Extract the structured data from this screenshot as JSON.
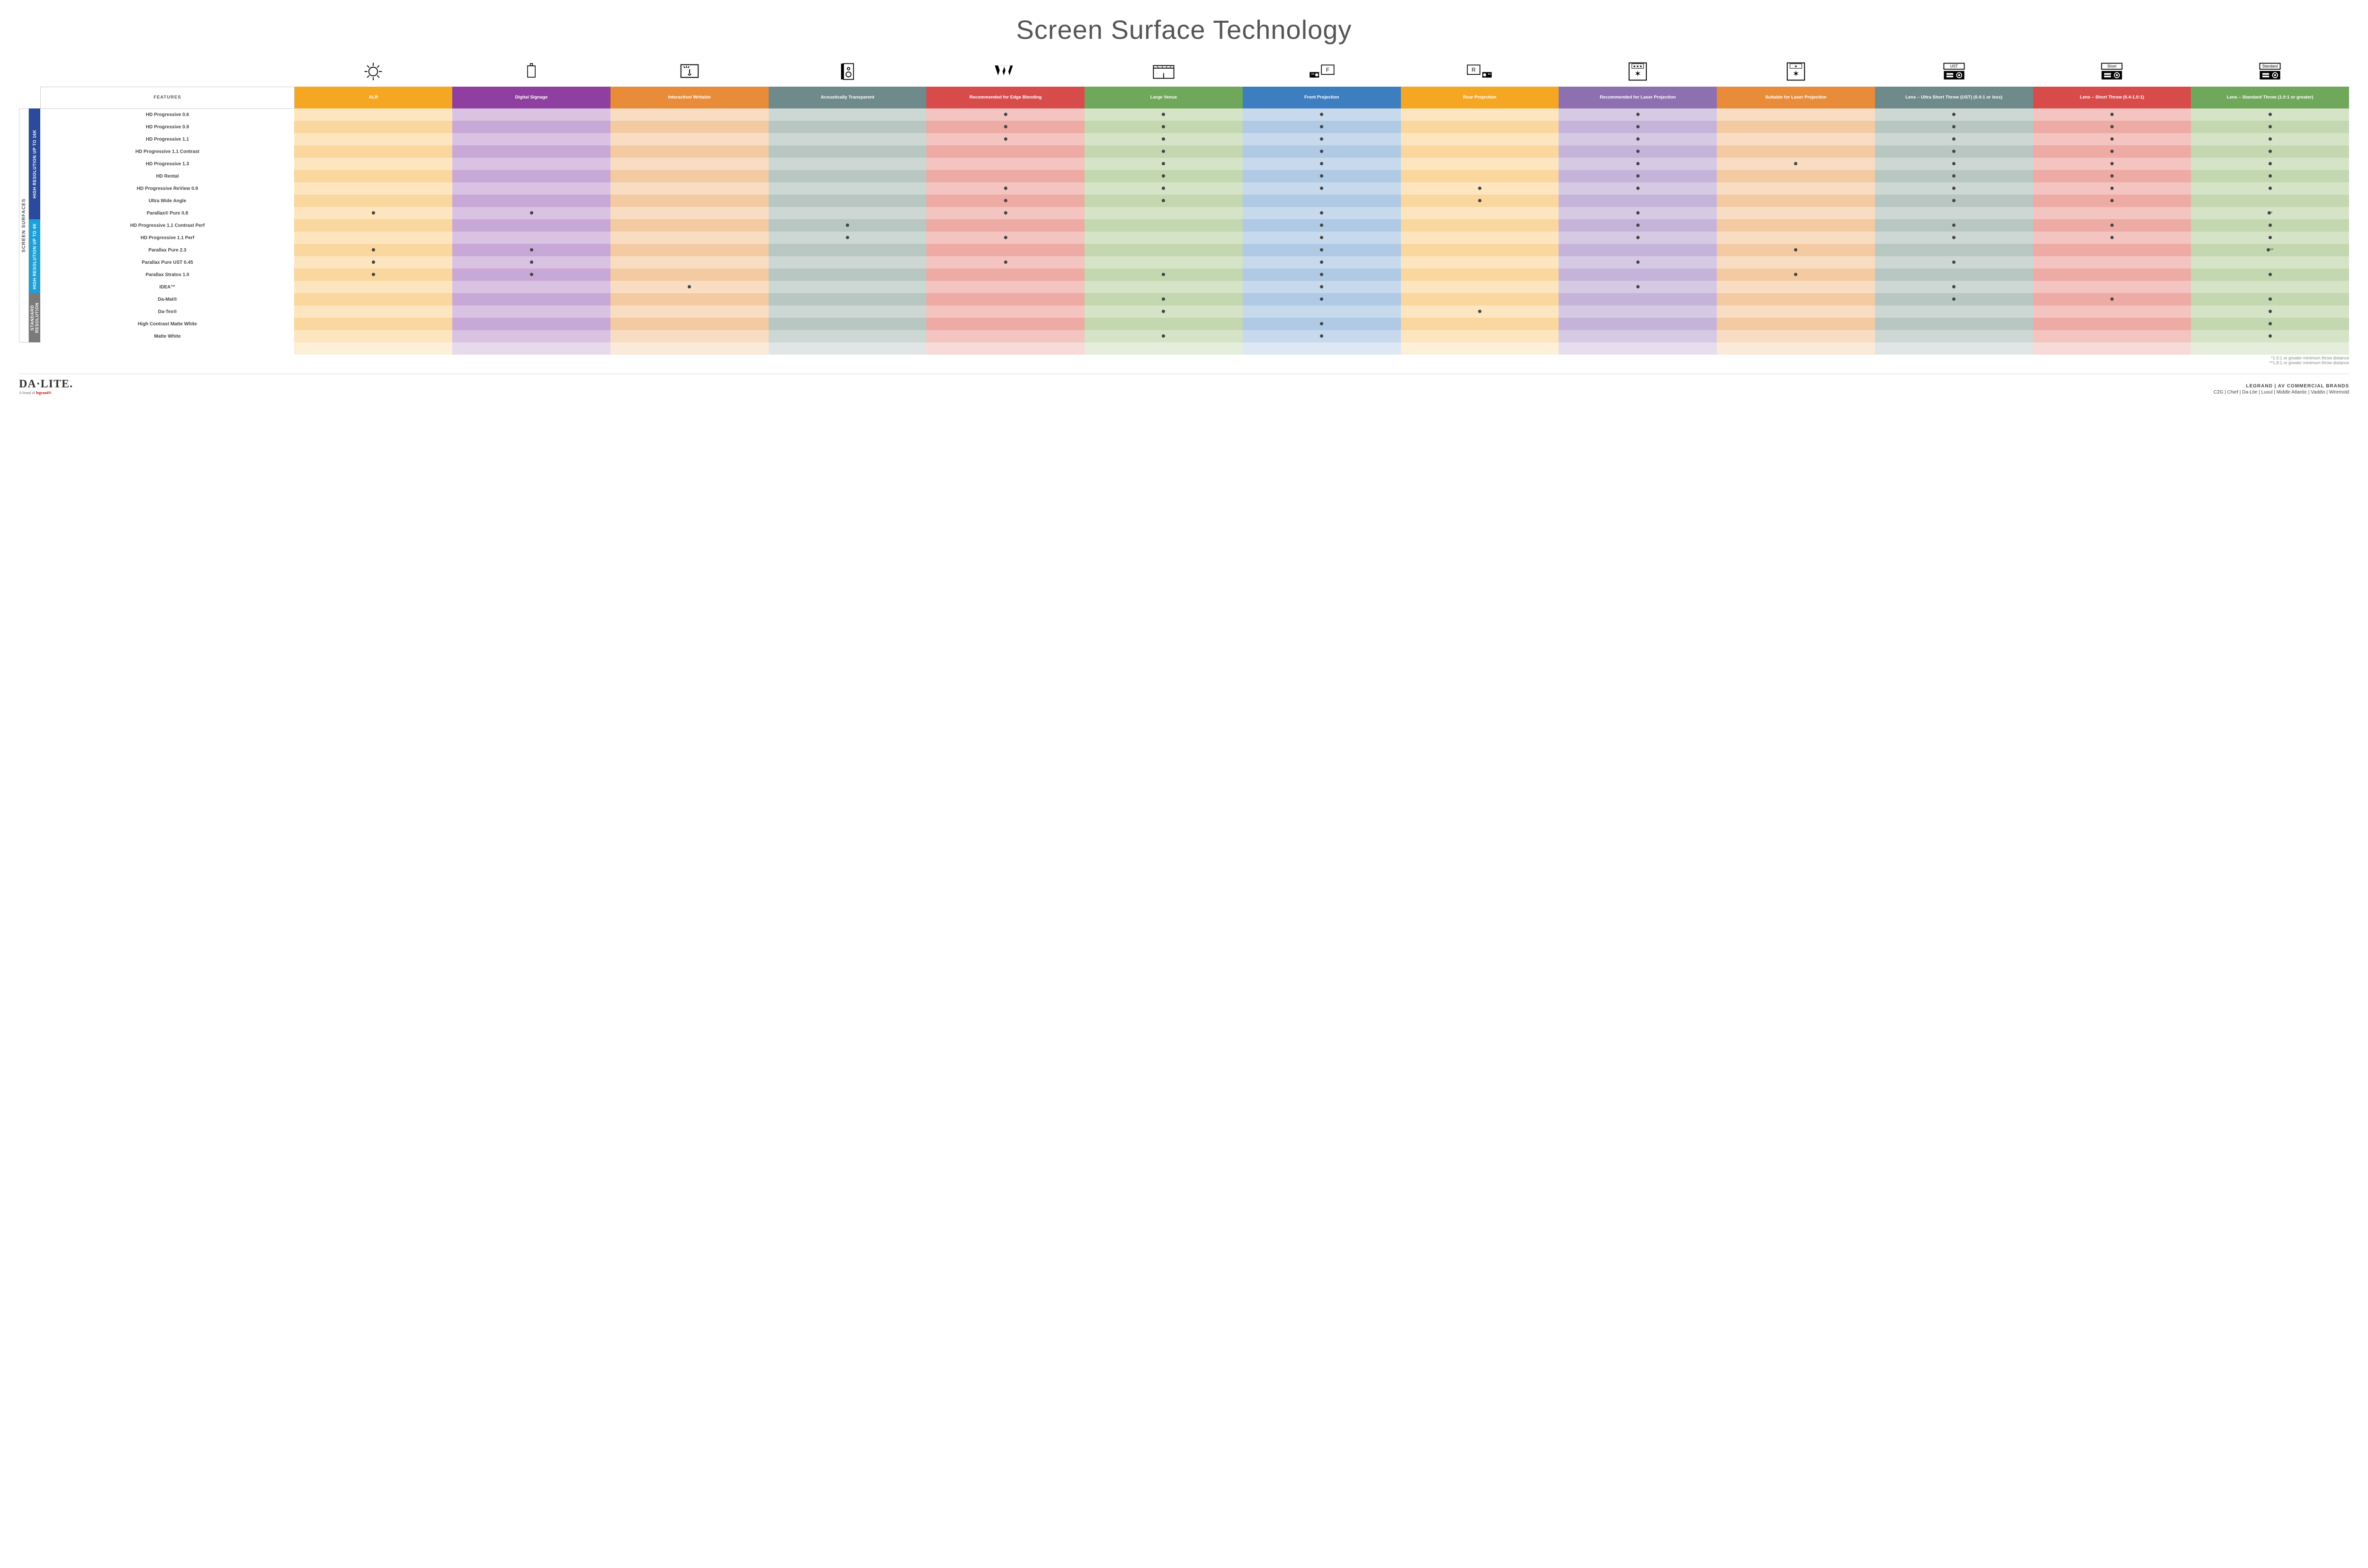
{
  "title": "Screen Surface Technology",
  "sideLabels": {
    "outer": "SCREEN SURFACES"
  },
  "groups": [
    {
      "label": "HIGH RESOLUTION UP TO 16K",
      "color": "#2b4a9b",
      "rowspan": 9
    },
    {
      "label": "HIGH RESOLUTION UP TO 4K",
      "color": "#1f9fd8",
      "rowspan": 6
    },
    {
      "label": "STANDARD RESOLUTION",
      "color": "#7a7a7a",
      "rowspan": 4
    }
  ],
  "columns": [
    {
      "key": "features",
      "label": "FEATURES",
      "headerBg": "#ffffff"
    },
    {
      "key": "alr",
      "label": "ALR",
      "headerBg": "#f5a623",
      "base": "#fde5bf",
      "alt": "#f9d79e"
    },
    {
      "key": "signage",
      "label": "Digital Signage",
      "headerBg": "#8e3fa0",
      "base": "#d9c2e2",
      "alt": "#c8a8d6"
    },
    {
      "key": "interactive",
      "label": "Interactive/ Writable",
      "headerBg": "#e98c3a",
      "base": "#f9ddc3",
      "alt": "#f4caa3"
    },
    {
      "key": "acoustic",
      "label": "Acoustically Transparent",
      "headerBg": "#6f8a8a",
      "base": "#cdd7d4",
      "alt": "#b9c7c3"
    },
    {
      "key": "edge",
      "label": "Recommended for Edge Blending",
      "headerBg": "#d84b4b",
      "base": "#f3c4c0",
      "alt": "#eeaaa4"
    },
    {
      "key": "large",
      "label": "Large Venue",
      "headerBg": "#6fa85a",
      "base": "#d5e3c6",
      "alt": "#c3d7b0"
    },
    {
      "key": "front",
      "label": "Front Projection",
      "headerBg": "#3d7ec1",
      "base": "#c7d9ed",
      "alt": "#b0c9e4"
    },
    {
      "key": "rear",
      "label": "Rear Projection",
      "headerBg": "#f5a623",
      "base": "#fde5bf",
      "alt": "#f9d79e"
    },
    {
      "key": "laserRec",
      "label": "Recommended for Laser Projection",
      "headerBg": "#8e6fb0",
      "base": "#d6c9e4",
      "alt": "#c6b3da"
    },
    {
      "key": "laserSuit",
      "label": "Suitable for Laser Projection",
      "headerBg": "#e98c3a",
      "base": "#f9ddc3",
      "alt": "#f4caa3"
    },
    {
      "key": "ust",
      "label": "Lens – Ultra Short Throw (UST) (0.4:1 or less)",
      "headerBg": "#6f8a8a",
      "base": "#cdd7d4",
      "alt": "#b9c7c3"
    },
    {
      "key": "short",
      "label": "Lens – Short Throw (0.4-1.0:1)",
      "headerBg": "#d84b4b",
      "base": "#f3c4c0",
      "alt": "#eeaaa4"
    },
    {
      "key": "std",
      "label": "Lens – Standard Throw (1.0:1 or greater)",
      "headerBg": "#6fa85a",
      "base": "#d5e3c6",
      "alt": "#c3d7b0"
    }
  ],
  "rows": [
    {
      "label": "HD Progressive 0.6",
      "dots": {
        "edge": "•",
        "large": "•",
        "front": "•",
        "laserRec": "•",
        "ust": "•",
        "short": "•",
        "std": "•"
      }
    },
    {
      "label": "HD Progressive 0.9",
      "dots": {
        "edge": "•",
        "large": "•",
        "front": "•",
        "laserRec": "•",
        "ust": "•",
        "short": "•",
        "std": "•"
      }
    },
    {
      "label": "HD Progressive 1.1",
      "dots": {
        "edge": "•",
        "large": "•",
        "front": "•",
        "laserRec": "•",
        "ust": "•",
        "short": "•",
        "std": "•"
      }
    },
    {
      "label": "HD Progressive 1.1 Contrast",
      "dots": {
        "large": "•",
        "front": "•",
        "laserRec": "•",
        "ust": "•",
        "short": "•",
        "std": "•"
      }
    },
    {
      "label": "HD Progressive 1.3",
      "dots": {
        "large": "•",
        "front": "•",
        "laserRec": "•",
        "laserSuit": "•",
        "ust": "•",
        "short": "•",
        "std": "•"
      }
    },
    {
      "label": "HD Rental",
      "dots": {
        "large": "•",
        "front": "•",
        "laserRec": "•",
        "ust": "•",
        "short": "•",
        "std": "•"
      }
    },
    {
      "label": "HD Progressive ReView 0.9",
      "dots": {
        "edge": "•",
        "large": "•",
        "front": "•",
        "rear": "•",
        "laserRec": "•",
        "ust": "•",
        "short": "•",
        "std": "•"
      }
    },
    {
      "label": "Ultra Wide Angle",
      "dots": {
        "edge": "•",
        "large": "•",
        "rear": "•",
        "ust": "•",
        "short": "•"
      }
    },
    {
      "label": "Parallax® Pure 0.8",
      "dots": {
        "alr": "•",
        "signage": "•",
        "edge": "•",
        "front": "•",
        "laserRec": "•",
        "std": "•*"
      }
    },
    {
      "label": "HD Progressive 1.1 Contrast Perf",
      "dots": {
        "acoustic": "•",
        "front": "•",
        "laserRec": "•",
        "ust": "•",
        "short": "•",
        "std": "•"
      }
    },
    {
      "label": "HD Progressive 1.1 Perf",
      "dots": {
        "acoustic": "•",
        "edge": "•",
        "front": "•",
        "laserRec": "•",
        "ust": "•",
        "short": "•",
        "std": "•"
      }
    },
    {
      "label": "Parallax Pure 2.3",
      "dots": {
        "alr": "•",
        "signage": "•",
        "front": "•",
        "laserSuit": "•",
        "std": "•**"
      }
    },
    {
      "label": "Parallax Pure UST 0.45",
      "dots": {
        "alr": "•",
        "signage": "•",
        "edge": "•",
        "front": "•",
        "laserRec": "•",
        "ust": "•"
      }
    },
    {
      "label": "Parallax Stratos 1.0",
      "dots": {
        "alr": "•",
        "signage": "•",
        "large": "•",
        "front": "•",
        "laserSuit": "•",
        "std": "•"
      }
    },
    {
      "label": "IDEA™",
      "dots": {
        "interactive": "•",
        "front": "•",
        "laserRec": "•",
        "ust": "•"
      }
    },
    {
      "label": "Da-Mat®",
      "dots": {
        "large": "•",
        "front": "•",
        "ust": "•",
        "short": "•",
        "std": "•"
      }
    },
    {
      "label": "Da-Tex®",
      "dots": {
        "large": "•",
        "rear": "•",
        "std": "•"
      }
    },
    {
      "label": "High Contrast Matte White",
      "dots": {
        "front": "•",
        "std": "•"
      }
    },
    {
      "label": "Matte White",
      "dots": {
        "large": "•",
        "front": "•",
        "std": "•"
      }
    }
  ],
  "footnotes": [
    "*1.5:1 or greater minimum throw distance",
    "**1.8:1 or greater minimum throw distance"
  ],
  "footer": {
    "logoMain": "DA·LITE.",
    "logoSub": "A brand of",
    "logoSubBrand": "legrand®",
    "right1": "LEGRAND | AV COMMERCIAL BRANDS",
    "right2": "C2G  |  Chief  |  Da-Lite  |  Luxul  |  Middle Atlantic  |  Vaddio  |  Wiremold"
  },
  "icons": {
    "alr": "bulb",
    "signage": "signage",
    "interactive": "touch",
    "acoustic": "speaker",
    "edge": "edge",
    "large": "venue",
    "front": "front",
    "rear": "rear",
    "laserRec": "laserstar3",
    "laserSuit": "laserstar1",
    "ust": "projUST",
    "short": "projShort",
    "std": "projStd"
  }
}
